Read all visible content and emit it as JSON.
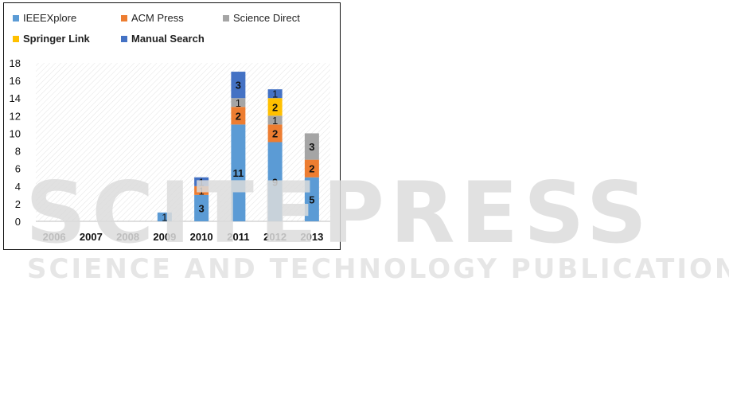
{
  "chart_data": {
    "type": "bar",
    "stacked": true,
    "categories": [
      "2006",
      "2007",
      "2008",
      "2009",
      "2010",
      "2011",
      "2012",
      "2013"
    ],
    "series": [
      {
        "name": "IEEEXplore",
        "color": "#5B9BD5",
        "values": [
          0,
          0,
          0,
          1,
          3,
          11,
          9,
          5
        ]
      },
      {
        "name": "ACM Press",
        "color": "#ED7D31",
        "values": [
          0,
          0,
          0,
          0,
          1,
          2,
          2,
          2
        ]
      },
      {
        "name": "Science Direct",
        "color": "#A5A5A5",
        "values": [
          0,
          0,
          0,
          0,
          0,
          1,
          1,
          3
        ]
      },
      {
        "name": "Springer Link",
        "color": "#FFC000",
        "values": [
          0,
          0,
          0,
          0,
          0,
          0,
          2,
          0
        ]
      },
      {
        "name": "Manual Search",
        "color": "#4472C4",
        "values": [
          0,
          0,
          0,
          0,
          1,
          3,
          1,
          0
        ]
      }
    ],
    "ylim": [
      0,
      18
    ],
    "yticks": [
      0,
      2,
      4,
      6,
      8,
      10,
      12,
      14,
      16,
      18
    ],
    "grid": "hatched plot background",
    "legend_position": "top"
  },
  "watermark": {
    "main_text": "SCITEPRESS",
    "sub_text": "SCIENCE AND TECHNOLOGY PUBLICATIONS"
  }
}
